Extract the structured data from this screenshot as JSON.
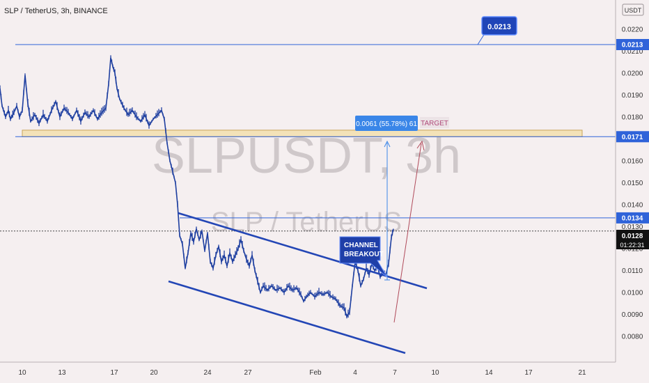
{
  "header": {
    "title": "SLP / TetherUS, 3h, BINANCE"
  },
  "watermark": {
    "main": "SLPUSDT, 3h",
    "sub": "SLP / TetherUS"
  },
  "currency_button": {
    "label": "USDT"
  },
  "annotations": {
    "target_callout": "0.0213",
    "measure_label": "0.0061 (55.78%) 61",
    "target_label": "TARGET",
    "breakout_line1": "CHANNEL",
    "breakout_line2": "BREAKOUT",
    "countdown": "01:22:31"
  },
  "colors": {
    "blue_line": "#2f63d9",
    "channel": "#2346b5",
    "candle": "#1e3fa0",
    "zone_fill": "#f3e2b8",
    "zone_stroke": "#c9a45a",
    "target_text": "#b04a7a",
    "arrow_red": "#b04a5a",
    "last_price_bg": "#111111"
  },
  "chart_data": {
    "type": "candlestick",
    "title": "SLP / TetherUS, 3h, BINANCE",
    "x_ticks": [
      "10",
      "13",
      "17",
      "20",
      "24",
      "27",
      "Feb",
      "4",
      "7",
      "10",
      "14",
      "17",
      "21"
    ],
    "y_ticks": [
      "0.0220",
      "0.0210",
      "0.0200",
      "0.0190",
      "0.0180",
      "0.0170",
      "0.0160",
      "0.0150",
      "0.0140",
      "0.0130",
      "0.0120",
      "0.0110",
      "0.0100",
      "0.0090",
      "0.0080"
    ],
    "ylim": [
      0.0072,
      0.0228
    ],
    "horizontal_levels": [
      {
        "label": "0.0213",
        "value": 0.0213
      },
      {
        "label": "0.0171",
        "value": 0.0171
      },
      {
        "label": "0.0134",
        "value": 0.0134
      }
    ],
    "last_price": {
      "label": "0.0128",
      "value": 0.0128
    },
    "support_zone": [
      0.0171,
      0.0174
    ],
    "price_path": [
      [
        0,
        0.0193
      ],
      [
        3,
        0.0185
      ],
      [
        8,
        0.018
      ],
      [
        12,
        0.0183
      ],
      [
        15,
        0.0179
      ],
      [
        20,
        0.0182
      ],
      [
        24,
        0.0185
      ],
      [
        28,
        0.018
      ],
      [
        32,
        0.0183
      ],
      [
        36,
        0.0199
      ],
      [
        40,
        0.0186
      ],
      [
        44,
        0.0178
      ],
      [
        50,
        0.0181
      ],
      [
        56,
        0.0177
      ],
      [
        62,
        0.0181
      ],
      [
        68,
        0.0178
      ],
      [
        74,
        0.0183
      ],
      [
        80,
        0.0187
      ],
      [
        86,
        0.018
      ],
      [
        92,
        0.0184
      ],
      [
        98,
        0.0182
      ],
      [
        104,
        0.0179
      ],
      [
        110,
        0.0183
      ],
      [
        116,
        0.0178
      ],
      [
        122,
        0.0182
      ],
      [
        128,
        0.018
      ],
      [
        134,
        0.0183
      ],
      [
        140,
        0.0179
      ],
      [
        146,
        0.0182
      ],
      [
        152,
        0.0184
      ],
      [
        156,
        0.0195
      ],
      [
        159,
        0.0207
      ],
      [
        162,
        0.0203
      ],
      [
        165,
        0.02
      ],
      [
        168,
        0.0193
      ],
      [
        172,
        0.0188
      ],
      [
        178,
        0.0184
      ],
      [
        184,
        0.0181
      ],
      [
        190,
        0.0183
      ],
      [
        196,
        0.018
      ],
      [
        202,
        0.0178
      ],
      [
        208,
        0.0181
      ],
      [
        214,
        0.0176
      ],
      [
        220,
        0.0179
      ],
      [
        226,
        0.0181
      ],
      [
        232,
        0.0183
      ],
      [
        236,
        0.0179
      ],
      [
        240,
        0.0168
      ],
      [
        244,
        0.016
      ],
      [
        248,
        0.0155
      ],
      [
        252,
        0.015
      ],
      [
        255,
        0.014
      ],
      [
        258,
        0.0126
      ],
      [
        262,
        0.0122
      ],
      [
        266,
        0.0111
      ],
      [
        270,
        0.0118
      ],
      [
        274,
        0.0127
      ],
      [
        278,
        0.0123
      ],
      [
        282,
        0.0129
      ],
      [
        286,
        0.0124
      ],
      [
        290,
        0.0128
      ],
      [
        294,
        0.0119
      ],
      [
        298,
        0.0127
      ],
      [
        302,
        0.0114
      ],
      [
        306,
        0.0111
      ],
      [
        310,
        0.0117
      ],
      [
        314,
        0.0121
      ],
      [
        318,
        0.0114
      ],
      [
        322,
        0.0117
      ],
      [
        326,
        0.0112
      ],
      [
        330,
        0.0118
      ],
      [
        334,
        0.0114
      ],
      [
        338,
        0.0117
      ],
      [
        342,
        0.012
      ],
      [
        346,
        0.0124
      ],
      [
        350,
        0.0119
      ],
      [
        354,
        0.0115
      ],
      [
        358,
        0.0112
      ],
      [
        362,
        0.0117
      ],
      [
        366,
        0.011
      ],
      [
        370,
        0.0105
      ],
      [
        374,
        0.01
      ],
      [
        378,
        0.0103
      ],
      [
        384,
        0.0101
      ],
      [
        390,
        0.0103
      ],
      [
        396,
        0.0101
      ],
      [
        402,
        0.0102
      ],
      [
        408,
        0.01
      ],
      [
        414,
        0.0103
      ],
      [
        420,
        0.0101
      ],
      [
        426,
        0.0102
      ],
      [
        432,
        0.0099
      ],
      [
        436,
        0.0096
      ],
      [
        440,
        0.0098
      ],
      [
        446,
        0.01
      ],
      [
        452,
        0.0098
      ],
      [
        458,
        0.01
      ],
      [
        464,
        0.0099
      ],
      [
        470,
        0.01
      ],
      [
        476,
        0.0098
      ],
      [
        482,
        0.0097
      ],
      [
        488,
        0.0094
      ],
      [
        494,
        0.0093
      ],
      [
        498,
        0.0089
      ],
      [
        502,
        0.0091
      ],
      [
        506,
        0.0103
      ],
      [
        510,
        0.0114
      ],
      [
        514,
        0.011
      ],
      [
        518,
        0.0103
      ],
      [
        522,
        0.0106
      ],
      [
        526,
        0.0111
      ],
      [
        530,
        0.0108
      ],
      [
        534,
        0.0113
      ],
      [
        538,
        0.011
      ],
      [
        542,
        0.0112
      ],
      [
        546,
        0.0107
      ],
      [
        550,
        0.0109
      ],
      [
        554,
        0.0108
      ],
      [
        558,
        0.0113
      ],
      [
        562,
        0.0125
      ],
      [
        565,
        0.0129
      ]
    ]
  }
}
